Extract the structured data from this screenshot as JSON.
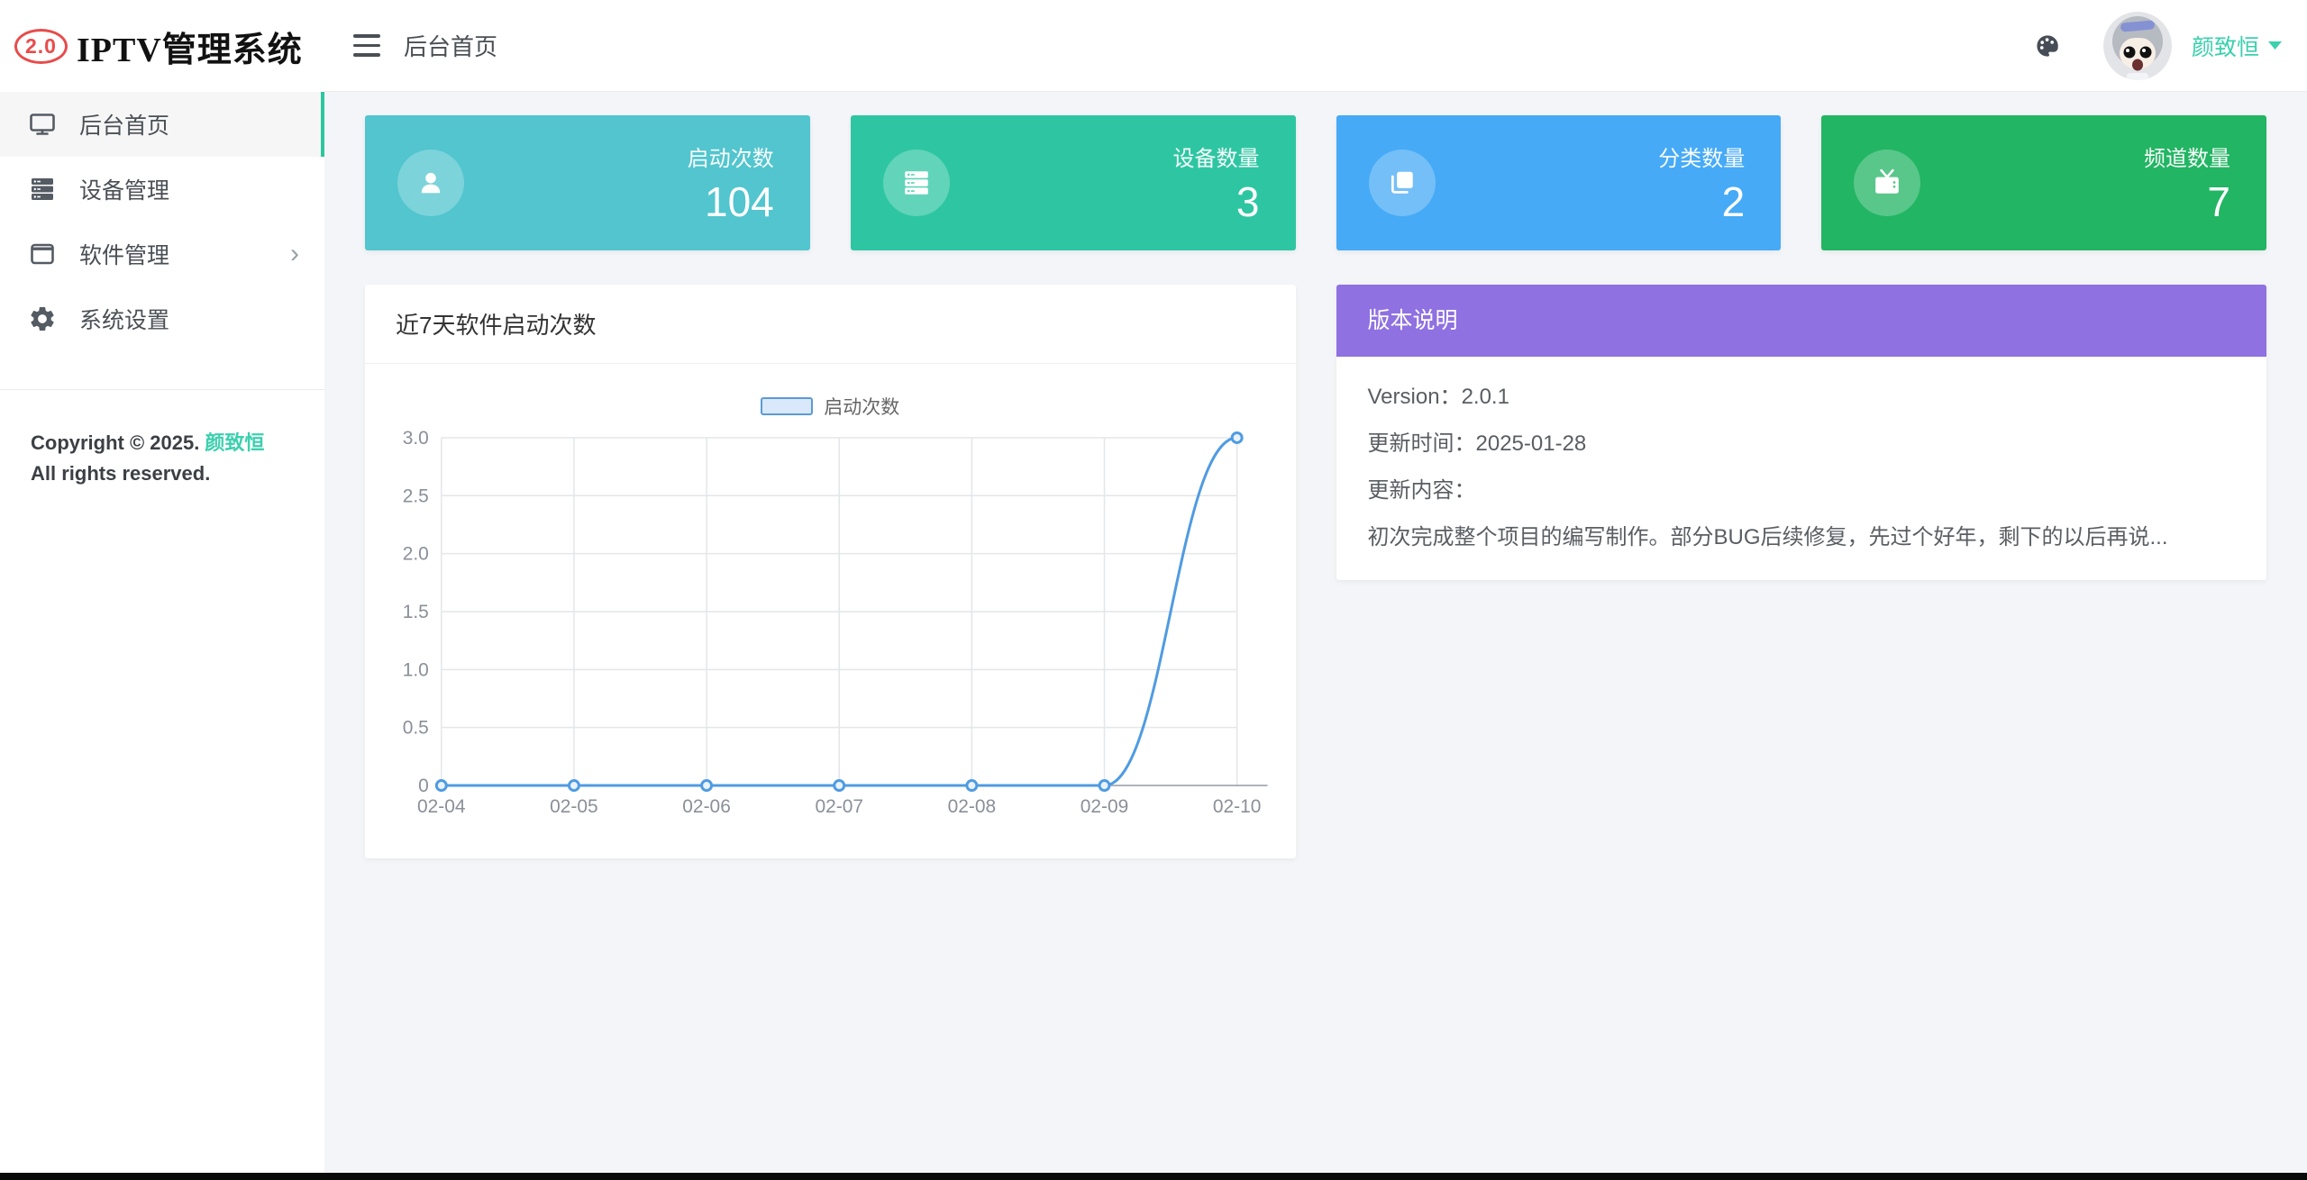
{
  "app": {
    "logo_badge": "2.0",
    "logo_title": "IPTV管理系统"
  },
  "topbar": {
    "breadcrumb": "后台首页",
    "username": "颜致恒",
    "icons": [
      "hamburger-icon",
      "palette-icon",
      "avatar",
      "chevron-down-icon"
    ]
  },
  "sidebar": {
    "items": [
      {
        "label": "后台首页",
        "icon": "monitor-icon",
        "active": true
      },
      {
        "label": "设备管理",
        "icon": "server-icon",
        "active": false
      },
      {
        "label": "软件管理",
        "icon": "window-icon",
        "active": false,
        "expandable": true
      },
      {
        "label": "系统设置",
        "icon": "gear-icon",
        "active": false
      }
    ],
    "copyright_prefix": "Copyright © 2025.",
    "copyright_author": "颜致恒",
    "copyright_suffix": "All rights reserved.",
    "active_accent_color": "#2cc6a0"
  },
  "stats": [
    {
      "label": "启动次数",
      "value": "104",
      "color": "#52c5ce",
      "icon": "user-icon"
    },
    {
      "label": "设备数量",
      "value": "3",
      "color": "#2ec6a2",
      "icon": "server-icon"
    },
    {
      "label": "分类数量",
      "value": "2",
      "color": "#46aaf6",
      "icon": "folders-icon"
    },
    {
      "label": "频道数量",
      "value": "7",
      "color": "#22b563",
      "icon": "tv-icon"
    }
  ],
  "chart_data": {
    "type": "line",
    "title": "近7天软件启动次数",
    "x": [
      "02-04",
      "02-05",
      "02-06",
      "02-07",
      "02-08",
      "02-09",
      "02-10"
    ],
    "series": [
      {
        "name": "启动次数",
        "values": [
          0,
          0,
          0,
          0,
          0,
          0,
          3
        ]
      }
    ],
    "ylim": [
      0,
      3
    ],
    "yticks": [
      0,
      0.5,
      1,
      1.5,
      2,
      2.5,
      3
    ],
    "ytick_labels": [
      "0",
      "0.5",
      "1.0",
      "1.5",
      "2.0",
      "2.5",
      "3.0"
    ],
    "xlabel": "",
    "ylabel": "",
    "grid": true,
    "smooth": true,
    "legend_position": "top",
    "line_color": "#4f9be2",
    "point_fill": "#eaf3fd",
    "legend_fill": "#d9e8fa",
    "legend_border": "#5b9bd5",
    "grid_color": "#e4e6e9",
    "axis_color": "#aeb3ba",
    "tick_color": "#8a8f99"
  },
  "version_card": {
    "header": "版本说明",
    "header_color": "#8f71e1",
    "version_label": "Version：",
    "version_value": "2.0.1",
    "updated_label": "更新时间：",
    "updated_value": "2025-01-28",
    "content_label": "更新内容：",
    "content_text": "初次完成整个项目的编写制作。部分BUG后续修复，先过个好年，剩下的以后再说..."
  }
}
